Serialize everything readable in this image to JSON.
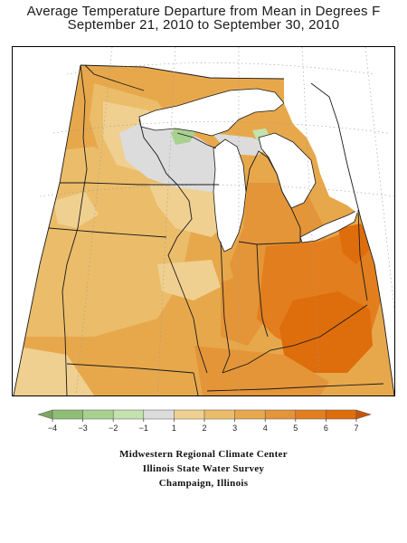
{
  "title": {
    "line1": "Average Temperature Departure from Mean in Degrees F",
    "line2": "September 21, 2010 to September 30, 2010"
  },
  "legend": {
    "tick_labels": [
      "−4",
      "−3",
      "−2",
      "−1",
      "1",
      "2",
      "3",
      "4",
      "5",
      "6",
      "7"
    ],
    "bins": [
      {
        "range": "< -4",
        "color": "#7aa862"
      },
      {
        "range": "-4 to -3",
        "color": "#8fbd76"
      },
      {
        "range": "-3 to -2",
        "color": "#a8d08f"
      },
      {
        "range": "-2 to -1",
        "color": "#c4e2ae"
      },
      {
        "range": "-1 to 1",
        "color": "#dcdcdc"
      },
      {
        "range": "1 to 2",
        "color": "#f0d090"
      },
      {
        "range": "2 to 3",
        "color": "#ebbd6a"
      },
      {
        "range": "3 to 4",
        "color": "#e7a84c"
      },
      {
        "range": "4 to 5",
        "color": "#e49538"
      },
      {
        "range": "5 to 6",
        "color": "#e27e1e"
      },
      {
        "range": "6 to 7",
        "color": "#de6d0c"
      },
      {
        "range": "> 7",
        "color": "#c95408"
      }
    ]
  },
  "map": {
    "region": "Midwest United States",
    "colors": {
      "water": "#ffffff",
      "neutral": "#dcdcdc",
      "cool": "#a8d08f",
      "warm_1_2": "#f0d090",
      "warm_2_3": "#ebbd6a",
      "warm_3_4": "#e7a84c",
      "warm_4_5": "#e49538",
      "warm_5_6": "#e27e1e",
      "warm_6_7": "#de6d0c",
      "borders": "#1a1a1a",
      "graticule": "#9a9a9a"
    }
  },
  "credits": {
    "line1": "Midwestern Regional Climate Center",
    "line2": "Illinois State Water Survey",
    "line3": "Champaign, Illinois"
  }
}
